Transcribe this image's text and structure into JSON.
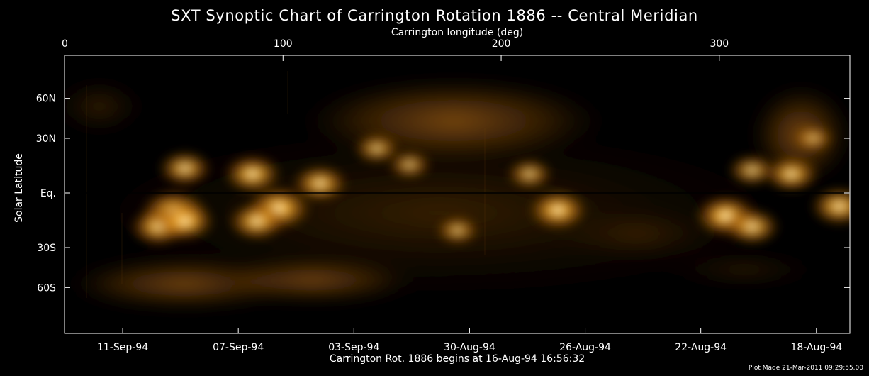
{
  "chart_data": {
    "type": "heatmap",
    "title": "SXT Synoptic Chart of Carrington Rotation 1886 -- Central Meridian",
    "top_axis": {
      "label": "Carrington longitude (deg)",
      "ticks": [
        0,
        100,
        200,
        300
      ],
      "range": [
        0,
        360
      ]
    },
    "y_axis": {
      "label": "Solar Latitude",
      "ticks": [
        {
          "label": "60N",
          "value": 60
        },
        {
          "label": "30N",
          "value": 30
        },
        {
          "label": "Eq.",
          "value": 0
        },
        {
          "label": "30S",
          "value": -30
        },
        {
          "label": "60S",
          "value": -60
        }
      ],
      "range": [
        -90,
        90
      ]
    },
    "bottom_axis": {
      "ticks": [
        {
          "label": "11-Sep-94",
          "longitude": 26.5
        },
        {
          "label": "07-Sep-94",
          "longitude": 79.5
        },
        {
          "label": "03-Sep-94",
          "longitude": 132.5
        },
        {
          "label": "30-Aug-94",
          "longitude": 185.5
        },
        {
          "label": "26-Aug-94",
          "longitude": 238.5
        },
        {
          "label": "22-Aug-94",
          "longitude": 291.5
        },
        {
          "label": "18-Aug-94",
          "longitude": 344.5
        }
      ]
    },
    "equator_line": true,
    "colormap": "soft X-ray (black to orange to white)",
    "accent_color": "#d78a1c",
    "caption": "Carrington Rot. 1886 begins at 16-Aug-94 16:56:32",
    "plot_made": "Plot Made 21-Mar-2011 09:29:55.00",
    "bright_regions": [
      {
        "lon": 50,
        "lat": -10,
        "intensity": 1.0
      },
      {
        "lon": 43,
        "lat": -18,
        "intensity": 0.8
      },
      {
        "lon": 55,
        "lat": -15,
        "intensity": 0.85
      },
      {
        "lon": 55,
        "lat": 13,
        "intensity": 0.7
      },
      {
        "lon": 86,
        "lat": 10,
        "intensity": 0.8
      },
      {
        "lon": 98,
        "lat": -8,
        "intensity": 0.95
      },
      {
        "lon": 88,
        "lat": -15,
        "intensity": 0.8
      },
      {
        "lon": 117,
        "lat": 5,
        "intensity": 0.75
      },
      {
        "lon": 143,
        "lat": 24,
        "intensity": 0.55
      },
      {
        "lon": 158,
        "lat": 15,
        "intensity": 0.5
      },
      {
        "lon": 213,
        "lat": 10,
        "intensity": 0.55
      },
      {
        "lon": 226,
        "lat": -9,
        "intensity": 0.85
      },
      {
        "lon": 180,
        "lat": -20,
        "intensity": 0.5
      },
      {
        "lon": 303,
        "lat": -12,
        "intensity": 0.9
      },
      {
        "lon": 315,
        "lat": -18,
        "intensity": 0.75
      },
      {
        "lon": 315,
        "lat": 12,
        "intensity": 0.6
      },
      {
        "lon": 333,
        "lat": 10,
        "intensity": 0.75
      },
      {
        "lon": 355,
        "lat": -7,
        "intensity": 0.8
      },
      {
        "lon": 343,
        "lat": 30,
        "intensity": 0.45
      }
    ]
  }
}
